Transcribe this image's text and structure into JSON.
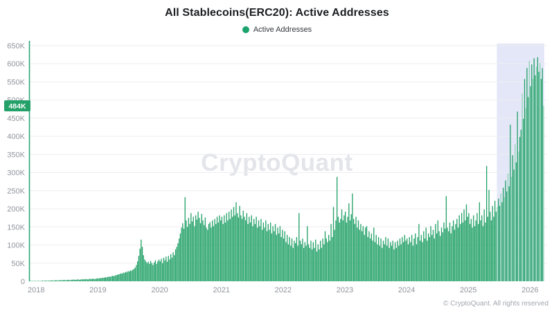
{
  "header": {
    "title": "All Stablecoins(ERC20): Active Addresses"
  },
  "legend": {
    "label": "Active Addresses",
    "color": "#1ba36e"
  },
  "watermark": "CryptoQuant",
  "footer": {
    "copyright": "© CryptoQuant. All rights reserved"
  },
  "colors": {
    "bar": "#23a168",
    "bar_light": "#8fd3b7",
    "axis_line": "#2aa578",
    "grid": "#ededf0",
    "tick_label": "#8f949c",
    "highlight_fill": "#e4e7f8",
    "badge_fill": "#23a169",
    "badge_text": "#ffffff"
  },
  "chart_data": {
    "type": "bar",
    "title": "All Stablecoins(ERC20): Active Addresses",
    "series_name": "Active Addresses",
    "frequency": "weekly",
    "unit_of_values": "thousand active addresses",
    "ylabel": "",
    "xlabel": "",
    "ylim": [
      0,
      650000
    ],
    "y_tick_step": 50000,
    "grid": true,
    "legend_position": "top",
    "x_tick_labels": [
      "2018",
      "2019",
      "2020",
      "2021",
      "2022",
      "2023",
      "2024",
      "2025",
      "2026"
    ],
    "y_tick_labels": [
      "0",
      "50K",
      "100K",
      "150K",
      "200K",
      "250K",
      "300K",
      "350K",
      "400K",
      "450K",
      "500K",
      "550K",
      "600K",
      "650K"
    ],
    "last_value_label": "484K",
    "highlight_start_index": 394,
    "values_thousands": [
      1,
      1,
      1,
      1,
      1,
      1,
      1,
      1,
      1,
      1,
      1,
      2,
      1,
      2,
      2,
      1,
      2,
      2,
      2,
      3,
      2,
      2,
      3,
      3,
      2,
      3,
      3,
      3,
      3,
      4,
      3,
      3,
      4,
      4,
      3,
      4,
      4,
      5,
      4,
      4,
      5,
      5,
      4,
      5,
      5,
      6,
      5,
      6,
      6,
      5,
      6,
      7,
      6,
      7,
      7,
      6,
      7,
      8,
      8,
      8,
      9,
      9,
      10,
      10,
      11,
      11,
      12,
      13,
      12,
      14,
      15,
      14,
      16,
      17,
      18,
      19,
      20,
      22,
      21,
      24,
      23,
      26,
      25,
      28,
      27,
      30,
      29,
      32,
      34,
      38,
      45,
      55,
      70,
      90,
      115,
      95,
      72,
      60,
      55,
      50,
      54,
      48,
      56,
      50,
      45,
      52,
      58,
      48,
      55,
      60,
      55,
      62,
      50,
      65,
      58,
      68,
      54,
      70,
      60,
      75,
      65,
      80,
      72,
      88,
      95,
      105,
      118,
      132,
      148,
      160,
      145,
      232,
      168,
      150,
      175,
      158,
      188,
      165,
      178,
      152,
      182,
      170,
      192,
      175,
      160,
      186,
      168,
      155,
      176,
      148,
      142,
      158,
      163,
      148,
      168,
      152,
      172,
      158,
      178,
      162,
      182,
      168,
      178,
      158,
      182,
      162,
      188,
      168,
      192,
      172,
      198,
      178,
      205,
      182,
      218,
      188,
      176,
      208,
      182,
      172,
      195,
      178,
      168,
      188,
      158,
      178,
      162,
      182,
      152,
      172,
      158,
      178,
      148,
      168,
      152,
      172,
      142,
      162,
      148,
      168,
      138,
      158,
      142,
      162,
      132,
      152,
      138,
      158,
      128,
      148,
      132,
      152,
      122,
      142,
      118,
      138,
      108,
      128,
      102,
      122,
      98,
      118,
      92,
      112,
      105,
      122,
      98,
      188,
      112,
      102,
      118,
      92,
      108,
      98,
      152,
      102,
      92,
      112,
      88,
      108,
      92,
      115,
      82,
      102,
      88,
      112,
      92,
      118,
      102,
      138,
      118,
      108,
      128,
      112,
      158,
      122,
      205,
      142,
      168,
      288,
      178,
      162,
      172,
      198,
      168,
      182,
      192,
      162,
      178,
      215,
      168,
      185,
      242,
      172,
      158,
      178,
      148,
      168,
      142,
      158,
      138,
      152,
      128,
      148,
      152,
      122,
      138,
      118,
      132,
      112,
      148,
      108,
      128,
      102,
      122,
      98,
      118,
      92,
      112,
      102,
      122,
      98,
      118,
      92,
      108,
      98,
      112,
      88,
      108,
      92,
      112,
      98,
      118,
      102,
      122,
      108,
      128,
      112,
      118,
      102,
      122,
      108,
      128,
      98,
      118,
      132,
      102,
      122,
      158,
      112,
      128,
      108,
      138,
      118,
      148,
      112,
      132,
      122,
      152,
      128,
      142,
      118,
      158,
      132,
      168,
      138,
      125,
      148,
      135,
      162,
      145,
      235,
      148,
      138,
      162,
      132,
      152,
      168,
      142,
      158,
      172,
      148,
      182,
      158,
      188,
      162,
      198,
      168,
      212,
      178,
      188,
      158,
      172,
      148,
      182,
      152,
      168,
      188,
      158,
      218,
      168,
      182,
      152,
      198,
      162,
      318,
      178,
      252,
      192,
      168,
      208,
      178,
      222,
      192,
      205,
      228,
      208,
      242,
      218,
      258,
      232,
      278,
      248,
      298,
      262,
      432,
      288,
      348,
      308,
      378,
      328,
      468,
      358,
      398,
      418,
      518,
      448,
      558,
      478,
      588,
      508,
      608,
      538,
      598,
      558,
      615,
      568,
      592,
      618,
      578,
      602,
      558,
      588,
      484
    ]
  }
}
